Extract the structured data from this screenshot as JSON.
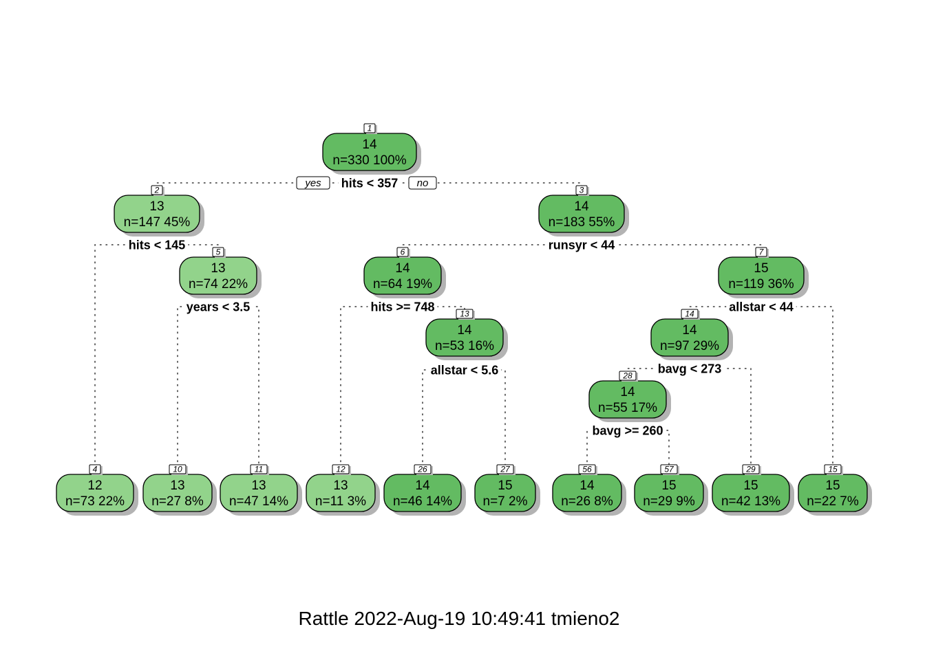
{
  "footer": "Rattle 2022-Aug-19 10:49:41 tmieno2",
  "branch_labels": {
    "yes": "yes",
    "no": "no"
  },
  "colors": {
    "low": "#92d38b",
    "high": "#63bb62"
  },
  "nodes": [
    {
      "id": "1",
      "value": "14",
      "stats": "n=330  100%",
      "shade": "high",
      "split": "hits < 357"
    },
    {
      "id": "2",
      "value": "13",
      "stats": "n=147  45%",
      "shade": "low",
      "split": "hits < 145"
    },
    {
      "id": "3",
      "value": "14",
      "stats": "n=183  55%",
      "shade": "high",
      "split": "runsyr < 44"
    },
    {
      "id": "5",
      "value": "13",
      "stats": "n=74  22%",
      "shade": "low",
      "split": "years < 3.5"
    },
    {
      "id": "6",
      "value": "14",
      "stats": "n=64  19%",
      "shade": "high",
      "split": "hits >= 748"
    },
    {
      "id": "7",
      "value": "15",
      "stats": "n=119  36%",
      "shade": "high",
      "split": "allstar < 44"
    },
    {
      "id": "13",
      "value": "14",
      "stats": "n=53  16%",
      "shade": "high",
      "split": "allstar < 5.6"
    },
    {
      "id": "14",
      "value": "14",
      "stats": "n=97  29%",
      "shade": "high",
      "split": "bavg < 273"
    },
    {
      "id": "28",
      "value": "14",
      "stats": "n=55  17%",
      "shade": "high",
      "split": "bavg >= 260"
    },
    {
      "id": "4",
      "value": "12",
      "stats": "n=73  22%",
      "shade": "low"
    },
    {
      "id": "10",
      "value": "13",
      "stats": "n=27  8%",
      "shade": "low"
    },
    {
      "id": "11",
      "value": "13",
      "stats": "n=47  14%",
      "shade": "low"
    },
    {
      "id": "12",
      "value": "13",
      "stats": "n=11  3%",
      "shade": "low"
    },
    {
      "id": "26",
      "value": "14",
      "stats": "n=46  14%",
      "shade": "high"
    },
    {
      "id": "27",
      "value": "15",
      "stats": "n=7  2%",
      "shade": "high"
    },
    {
      "id": "56",
      "value": "14",
      "stats": "n=26  8%",
      "shade": "high"
    },
    {
      "id": "57",
      "value": "15",
      "stats": "n=29  9%",
      "shade": "high"
    },
    {
      "id": "29",
      "value": "15",
      "stats": "n=42  13%",
      "shade": "high"
    },
    {
      "id": "15",
      "value": "15",
      "stats": "n=22  7%",
      "shade": "high"
    }
  ]
}
